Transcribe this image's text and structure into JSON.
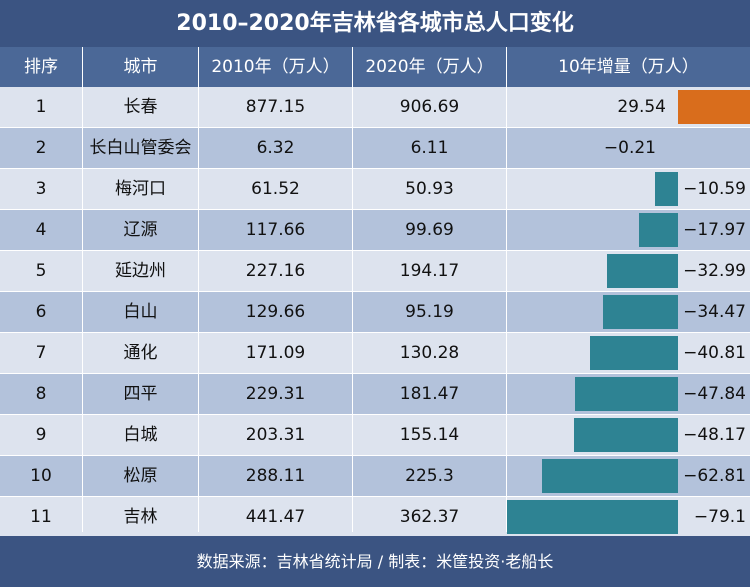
{
  "chart_data": {
    "type": "table",
    "title": "2010–2020年吉林省各城市总人口变化",
    "columns": [
      "排序",
      "城市",
      "2010年（万人）",
      "2020年（万人）",
      "10年增量（万人）"
    ],
    "rows": [
      {
        "rank": "1",
        "city": "长春",
        "pop2010": "877.15",
        "pop2020": "906.69",
        "change": "29.54",
        "change_value": 29.54
      },
      {
        "rank": "2",
        "city": "长白山管委会",
        "pop2010": "6.32",
        "pop2020": "6.11",
        "change": "−0.21",
        "change_value": -0.21
      },
      {
        "rank": "3",
        "city": "梅河口",
        "pop2010": "61.52",
        "pop2020": "50.93",
        "change": "−10.59",
        "change_value": -10.59
      },
      {
        "rank": "4",
        "city": "辽源",
        "pop2010": "117.66",
        "pop2020": "99.69",
        "change": "−17.97",
        "change_value": -17.97
      },
      {
        "rank": "5",
        "city": "延边州",
        "pop2010": "227.16",
        "pop2020": "194.17",
        "change": "−32.99",
        "change_value": -32.99
      },
      {
        "rank": "6",
        "city": "白山",
        "pop2010": "129.66",
        "pop2020": "95.19",
        "change": "−34.47",
        "change_value": -34.47
      },
      {
        "rank": "7",
        "city": "通化",
        "pop2010": "171.09",
        "pop2020": "130.28",
        "change": "−40.81",
        "change_value": -40.81
      },
      {
        "rank": "8",
        "city": "四平",
        "pop2010": "229.31",
        "pop2020": "181.47",
        "change": "−47.84",
        "change_value": -47.84
      },
      {
        "rank": "9",
        "city": "白城",
        "pop2010": "203.31",
        "pop2020": "155.14",
        "change": "−48.17",
        "change_value": -48.17
      },
      {
        "rank": "10",
        "city": "松原",
        "pop2010": "288.11",
        "pop2020": "225.3",
        "change": "−62.81",
        "change_value": -62.81
      },
      {
        "rank": "11",
        "city": "吉林",
        "pop2010": "441.47",
        "pop2020": "362.37",
        "change": "−79.1",
        "change_value": -79.1
      }
    ],
    "bar_colors": {
      "positive": "#d96d1c",
      "negative": "#2e8393"
    }
  },
  "footer": "数据来源：吉林省统计局 / 制表：米筐投资·老船长"
}
